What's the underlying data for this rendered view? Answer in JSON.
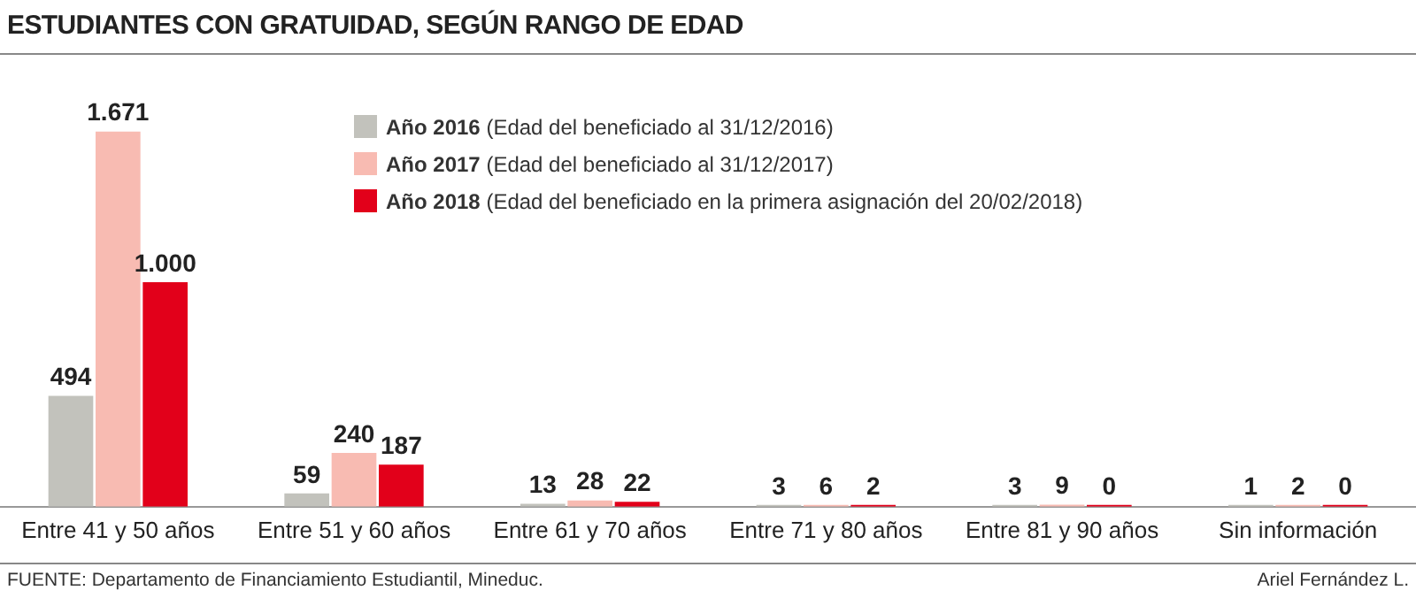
{
  "chart_data": {
    "type": "bar",
    "title": "ESTUDIANTES CON GRATUIDAD, SEGÚN RANGO DE EDAD",
    "categories": [
      "Entre 41 y 50 años",
      "Entre 51 y 60 años",
      "Entre 61 y 70 años",
      "Entre 71 y 80 años",
      "Entre 81 y 90 años",
      "Sin información"
    ],
    "series": [
      {
        "name": "Año 2016 (Edad del beneficiado al 31/12/2016)",
        "color": "#c2c2bc",
        "values": [
          494,
          59,
          13,
          3,
          3,
          1
        ],
        "value_labels": [
          "494",
          "59",
          "13",
          "3",
          "3",
          "1"
        ]
      },
      {
        "name": "Año 2017 (Edad del beneficiado al 31/12/2017)",
        "color": "#f8bbb2",
        "values": [
          1671,
          240,
          28,
          6,
          9,
          2
        ],
        "value_labels": [
          "1.671",
          "240",
          "28",
          "6",
          "9",
          "2"
        ]
      },
      {
        "name": "Año 2018 (Edad del beneficiado en la primera asignación del 20/02/2018)",
        "color": "#e2001a",
        "values": [
          1000,
          187,
          22,
          2,
          0,
          0
        ],
        "value_labels": [
          "1.000",
          "187",
          "22",
          "2",
          "0",
          "0"
        ]
      }
    ],
    "legend": "top",
    "grid": false,
    "annotations": [
      "FUENTE: Departamento de Financiamiento Estudiantil, Mineduc.",
      "Ariel Fernández L."
    ]
  }
}
